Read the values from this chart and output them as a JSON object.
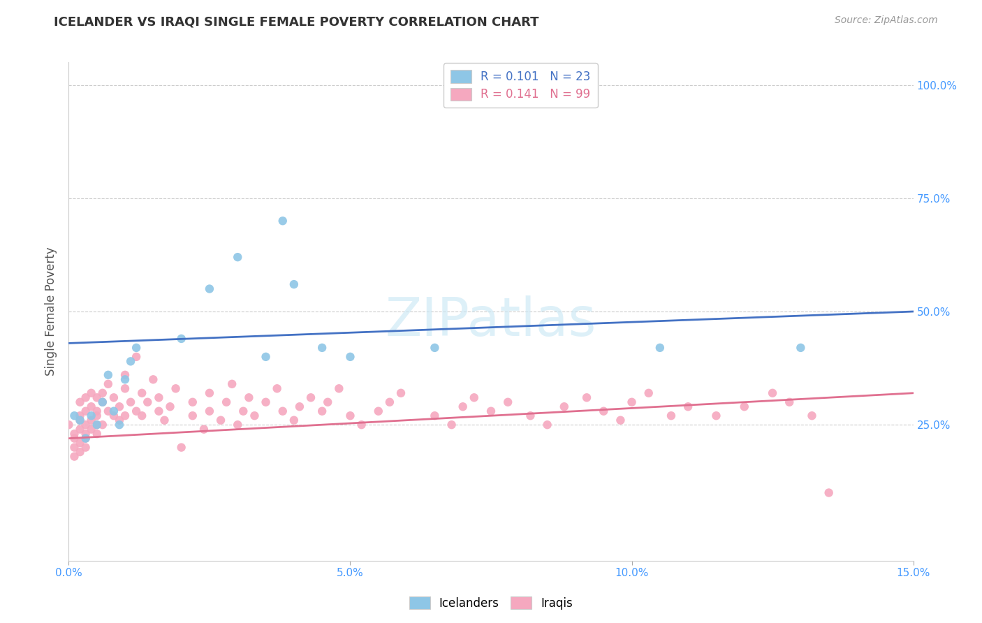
{
  "title": "ICELANDER VS IRAQI SINGLE FEMALE POVERTY CORRELATION CHART",
  "source": "Source: ZipAtlas.com",
  "ylabel": "Single Female Poverty",
  "x_min": 0.0,
  "x_max": 0.15,
  "y_min": -5.0,
  "y_max": 105.0,
  "y_ticks": [
    25.0,
    50.0,
    75.0,
    100.0
  ],
  "x_ticks": [
    0.0,
    0.05,
    0.1,
    0.15
  ],
  "x_tick_labels": [
    "0.0%",
    "5.0%",
    "10.0%",
    "15.0%"
  ],
  "y_tick_labels_right": [
    "25.0%",
    "50.0%",
    "75.0%",
    "100.0%"
  ],
  "legend_labels": [
    "Icelanders",
    "Iraqis"
  ],
  "legend_r_ice": "R = 0.101",
  "legend_n_ice": "N = 23",
  "legend_r_irq": "R = 0.141",
  "legend_n_irq": "N = 99",
  "color_ice": "#8ec6e6",
  "color_irq": "#f5a8bf",
  "line_color_ice": "#4472c4",
  "line_color_irq": "#e07090",
  "background_color": "#ffffff",
  "watermark": "ZIPatlas",
  "icelanders_x": [
    0.001,
    0.002,
    0.003,
    0.004,
    0.005,
    0.006,
    0.007,
    0.008,
    0.009,
    0.01,
    0.011,
    0.012,
    0.02,
    0.025,
    0.03,
    0.035,
    0.038,
    0.04,
    0.045,
    0.05,
    0.065,
    0.105,
    0.13
  ],
  "icelanders_y": [
    27,
    26,
    22,
    27,
    25,
    30,
    36,
    28,
    25,
    35,
    39,
    42,
    44,
    55,
    62,
    40,
    70,
    56,
    42,
    40,
    42,
    42,
    42
  ],
  "iraqis_x": [
    0.0,
    0.001,
    0.001,
    0.001,
    0.001,
    0.002,
    0.002,
    0.002,
    0.002,
    0.002,
    0.002,
    0.003,
    0.003,
    0.003,
    0.003,
    0.003,
    0.003,
    0.004,
    0.004,
    0.004,
    0.004,
    0.005,
    0.005,
    0.005,
    0.005,
    0.005,
    0.006,
    0.006,
    0.006,
    0.007,
    0.007,
    0.008,
    0.008,
    0.009,
    0.009,
    0.01,
    0.01,
    0.01,
    0.011,
    0.012,
    0.012,
    0.013,
    0.013,
    0.014,
    0.015,
    0.016,
    0.016,
    0.017,
    0.018,
    0.019,
    0.02,
    0.022,
    0.022,
    0.024,
    0.025,
    0.025,
    0.027,
    0.028,
    0.029,
    0.03,
    0.031,
    0.032,
    0.033,
    0.035,
    0.037,
    0.038,
    0.04,
    0.041,
    0.043,
    0.045,
    0.046,
    0.048,
    0.05,
    0.052,
    0.055,
    0.057,
    0.059,
    0.065,
    0.068,
    0.07,
    0.072,
    0.075,
    0.078,
    0.082,
    0.085,
    0.088,
    0.092,
    0.095,
    0.098,
    0.1,
    0.103,
    0.107,
    0.11,
    0.115,
    0.12,
    0.125,
    0.128,
    0.132,
    0.135
  ],
  "iraqis_y": [
    25,
    23,
    20,
    22,
    18,
    24,
    26,
    21,
    19,
    27,
    30,
    23,
    25,
    28,
    31,
    22,
    20,
    26,
    29,
    32,
    24,
    27,
    23,
    31,
    25,
    28,
    30,
    25,
    32,
    28,
    34,
    27,
    31,
    26,
    29,
    33,
    27,
    36,
    30,
    28,
    40,
    32,
    27,
    30,
    35,
    31,
    28,
    26,
    29,
    33,
    20,
    27,
    30,
    24,
    28,
    32,
    26,
    30,
    34,
    25,
    28,
    31,
    27,
    30,
    33,
    28,
    26,
    29,
    31,
    28,
    30,
    33,
    27,
    25,
    28,
    30,
    32,
    27,
    25,
    29,
    31,
    28,
    30,
    27,
    25,
    29,
    31,
    28,
    26,
    30,
    32,
    27,
    29,
    27,
    29,
    32,
    30,
    27,
    10
  ],
  "ice_line_x0": 0.0,
  "ice_line_x1": 0.15,
  "ice_line_y0": 43.0,
  "ice_line_y1": 50.0,
  "irq_line_x0": 0.0,
  "irq_line_x1": 0.15,
  "irq_line_y0": 22.0,
  "irq_line_y1": 32.0
}
